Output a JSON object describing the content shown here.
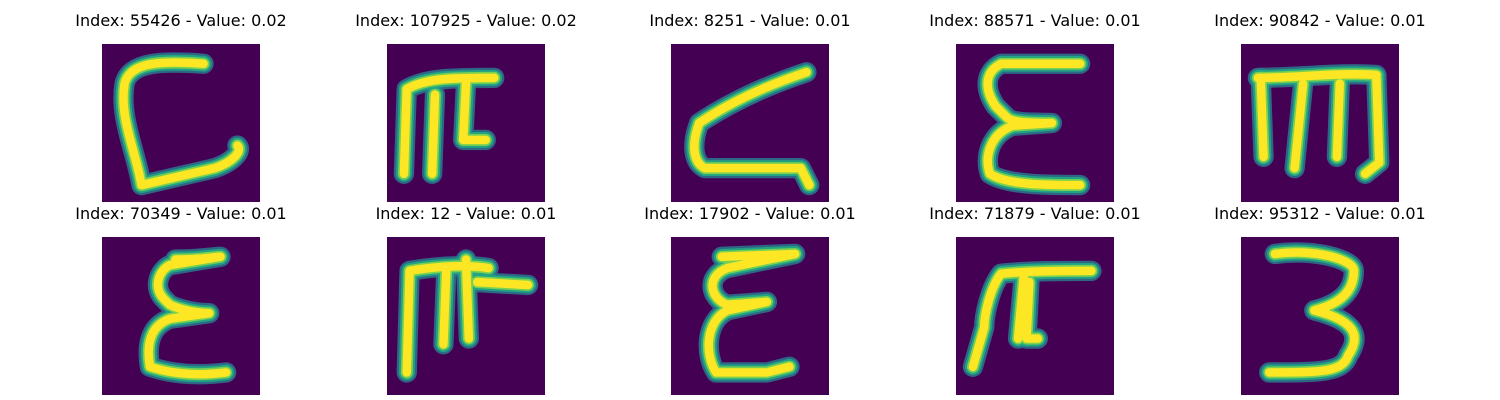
{
  "chart_data": {
    "type": "image_grid",
    "rows": 2,
    "cols": 5,
    "colormap": "viridis",
    "background_color": "#440154",
    "stroke_color": "#fde725",
    "panels": [
      {
        "title": "Index: 55426 - Value: 0.02",
        "index": 55426,
        "value": 0.02,
        "glyph": "ᒪ-shaped hook"
      },
      {
        "title": "Index: 107925 - Value: 0.02",
        "index": 107925,
        "value": 0.02,
        "glyph": "ㄫ-shaped stroke"
      },
      {
        "title": "Index: 8251 - Value: 0.01",
        "index": 8251,
        "value": 0.01,
        "glyph": "ㄥ-shaped stroke"
      },
      {
        "title": "Index: 88571 - Value: 0.01",
        "index": 88571,
        "value": 0.01,
        "glyph": "Ɛ"
      },
      {
        "title": "Index: 90842 - Value: 0.01",
        "index": 90842,
        "value": 0.01,
        "glyph": "ㄇ-like stroke"
      },
      {
        "title": "Index: 70349 - Value: 0.01",
        "index": 70349,
        "value": 0.01,
        "glyph": "Ɛ"
      },
      {
        "title": "Index: 12 - Value: 0.01",
        "index": 12,
        "value": 0.01,
        "glyph": "ㄫ-shaped stroke"
      },
      {
        "title": "Index: 17902 - Value: 0.01",
        "index": 17902,
        "value": 0.01,
        "glyph": "Ɛ"
      },
      {
        "title": "Index: 71879 - Value: 0.01",
        "index": 71879,
        "value": 0.01,
        "glyph": "ㄫ-shaped stroke"
      },
      {
        "title": "Index: 95312 - Value: 0.01",
        "index": 95312,
        "value": 0.01,
        "glyph": "3"
      }
    ]
  }
}
